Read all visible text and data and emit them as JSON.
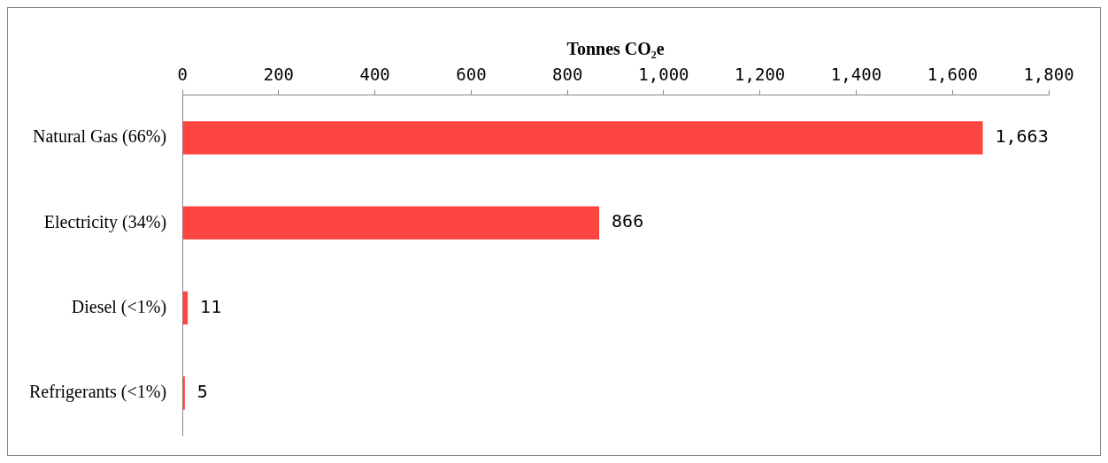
{
  "chart_data": {
    "type": "bar",
    "orientation": "horizontal",
    "xlabel": "Tonnes CO₂e",
    "categories": [
      "Natural Gas (66%)",
      "Electricity (34%)",
      "Diesel (<1%)",
      "Refrigerants (<1%)"
    ],
    "values": [
      1663,
      866,
      11,
      5
    ],
    "value_labels": [
      "1,663",
      "866",
      "11",
      "5"
    ],
    "color": "#fc4540",
    "xlim": [
      0,
      1800
    ],
    "xticks": [
      0,
      200,
      400,
      600,
      800,
      {
        "value": 1000,
        "label": "1,000"
      },
      {
        "value": 1200,
        "label": "1,200"
      },
      {
        "value": 1400,
        "label": "1,400"
      },
      {
        "value": 1600,
        "label": "1,600"
      },
      {
        "value": 1800,
        "label": "1,800"
      }
    ],
    "grid": false,
    "legend": false
  }
}
